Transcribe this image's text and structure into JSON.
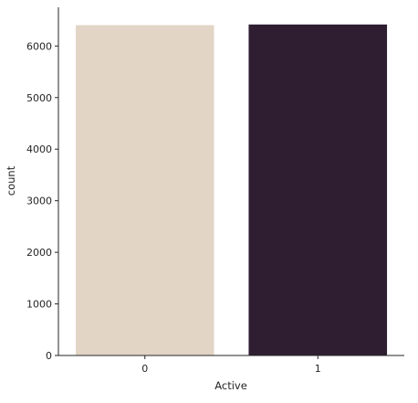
{
  "chart_data": {
    "type": "bar",
    "title": "",
    "xlabel": "Active",
    "ylabel": "count",
    "categories": [
      "0",
      "1"
    ],
    "values": [
      6404,
      6417
    ],
    "colors": [
      "#e2d5c6",
      "#2f1d31"
    ],
    "ylim": [
      0,
      6750
    ],
    "yticks": [
      0,
      1000,
      2000,
      3000,
      4000,
      5000,
      6000
    ],
    "grid": false,
    "legend": "none"
  }
}
